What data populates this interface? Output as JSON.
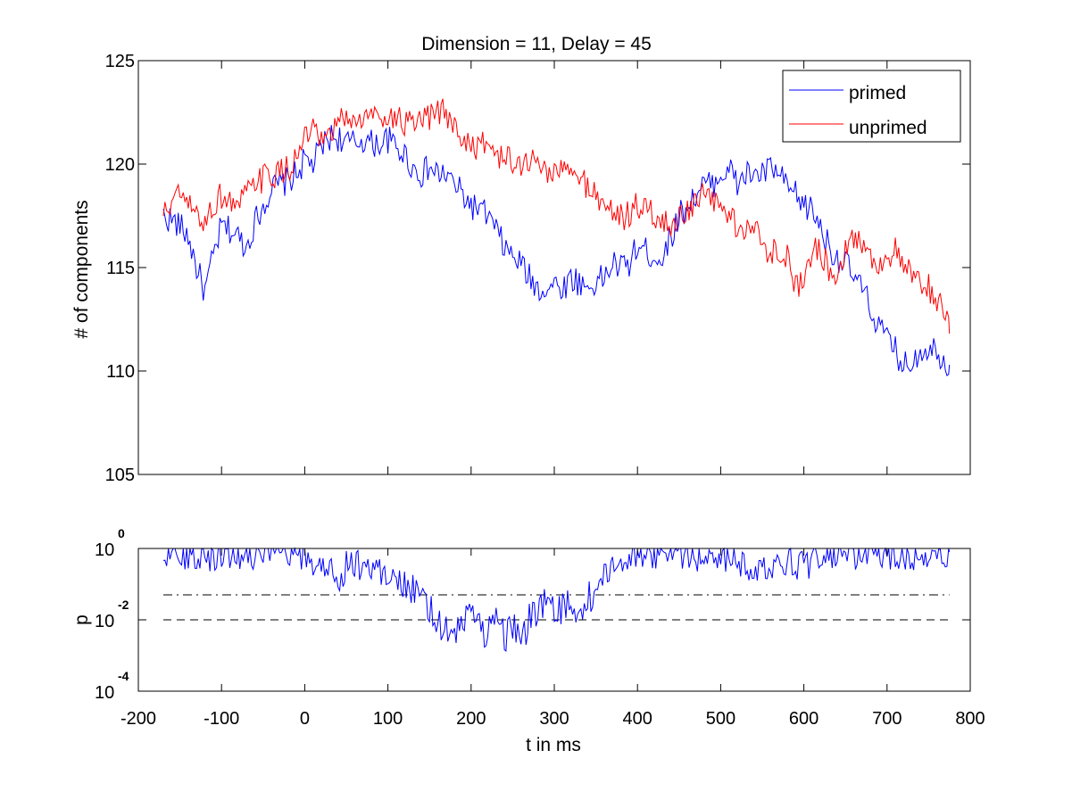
{
  "chart_data": [
    {
      "type": "line",
      "title": "Dimension  = 11, Delay = 45",
      "xlabel": "",
      "ylabel": "# of components",
      "xlim": [
        -200,
        800
      ],
      "ylim": [
        105,
        125
      ],
      "yticks": [
        105,
        110,
        115,
        120,
        125
      ],
      "xticks_shown": false,
      "grid": false,
      "legend_position": "top-right",
      "x_range_of_data": [
        -170,
        775
      ],
      "series": [
        {
          "name": "primed",
          "color": "#0000ff",
          "x": [
            -170,
            -160,
            -150,
            -140,
            -130,
            -120,
            -110,
            -100,
            -90,
            -80,
            -70,
            -60,
            -50,
            -40,
            -30,
            -20,
            -10,
            0,
            10,
            20,
            30,
            40,
            50,
            60,
            70,
            80,
            90,
            100,
            110,
            120,
            130,
            140,
            150,
            160,
            170,
            180,
            190,
            200,
            210,
            220,
            230,
            240,
            250,
            260,
            270,
            280,
            290,
            300,
            310,
            320,
            330,
            340,
            350,
            360,
            370,
            380,
            390,
            400,
            410,
            420,
            430,
            440,
            450,
            460,
            470,
            480,
            490,
            500,
            510,
            520,
            530,
            540,
            550,
            560,
            570,
            580,
            590,
            600,
            610,
            620,
            630,
            640,
            650,
            660,
            670,
            680,
            690,
            700,
            710,
            720,
            730,
            740,
            750,
            760,
            770,
            775
          ],
          "values": [
            117.5,
            117.3,
            117.0,
            116.5,
            115.0,
            113.8,
            115.5,
            117.0,
            116.8,
            116.5,
            116.0,
            117.2,
            118.0,
            118.8,
            119.0,
            119.2,
            119.5,
            120.2,
            120.0,
            120.8,
            121.3,
            121.3,
            121.0,
            121.0,
            121.2,
            121.0,
            121.0,
            121.2,
            120.8,
            120.5,
            119.8,
            119.5,
            119.8,
            119.5,
            119.5,
            119.0,
            118.5,
            118.0,
            117.8,
            117.5,
            116.8,
            116.0,
            115.5,
            115.2,
            114.5,
            114.0,
            114.0,
            114.2,
            114.0,
            114.5,
            114.3,
            114.0,
            114.3,
            114.5,
            115.2,
            115.0,
            115.2,
            116.0,
            115.8,
            115.5,
            115.5,
            116.5,
            117.5,
            118.0,
            118.5,
            119.0,
            119.0,
            119.5,
            119.8,
            119.0,
            119.5,
            119.5,
            119.5,
            119.8,
            119.5,
            118.8,
            118.5,
            118.0,
            117.8,
            117.0,
            116.0,
            115.5,
            115.2,
            114.5,
            114.0,
            113.0,
            112.2,
            111.5,
            111.0,
            110.2,
            110.5,
            111.0,
            111.2,
            111.0,
            110.5,
            110.3
          ]
        },
        {
          "name": "unprimed",
          "color": "#ff0000",
          "x": [
            -170,
            -160,
            -150,
            -140,
            -130,
            -120,
            -110,
            -100,
            -90,
            -80,
            -70,
            -60,
            -50,
            -40,
            -30,
            -20,
            -10,
            0,
            10,
            20,
            30,
            40,
            50,
            60,
            70,
            80,
            90,
            100,
            110,
            120,
            130,
            140,
            150,
            160,
            170,
            180,
            190,
            200,
            210,
            220,
            230,
            240,
            250,
            260,
            270,
            280,
            290,
            300,
            310,
            320,
            330,
            340,
            350,
            360,
            370,
            380,
            390,
            400,
            410,
            420,
            430,
            440,
            450,
            460,
            470,
            480,
            490,
            500,
            510,
            520,
            530,
            540,
            550,
            560,
            570,
            580,
            590,
            600,
            610,
            620,
            630,
            640,
            650,
            660,
            670,
            680,
            690,
            700,
            710,
            720,
            730,
            740,
            750,
            760,
            770,
            775
          ],
          "values": [
            117.5,
            118.2,
            118.5,
            118.0,
            117.5,
            117.2,
            118.0,
            118.5,
            118.2,
            118.0,
            118.5,
            119.0,
            119.3,
            119.5,
            119.5,
            119.8,
            120.2,
            121.3,
            121.5,
            121.0,
            121.2,
            122.0,
            122.3,
            122.0,
            122.2,
            122.3,
            122.5,
            122.3,
            122.2,
            122.0,
            121.8,
            122.0,
            122.2,
            122.5,
            122.5,
            121.8,
            121.2,
            121.0,
            120.8,
            121.0,
            120.5,
            120.3,
            120.0,
            120.0,
            120.2,
            120.0,
            119.8,
            119.5,
            119.8,
            119.5,
            119.3,
            119.0,
            118.5,
            118.0,
            117.8,
            117.5,
            117.5,
            118.0,
            117.8,
            117.5,
            117.2,
            117.0,
            117.5,
            117.8,
            118.0,
            118.5,
            118.2,
            118.0,
            117.5,
            117.0,
            116.8,
            117.0,
            116.0,
            115.8,
            116.0,
            115.5,
            114.0,
            114.5,
            116.0,
            115.8,
            115.0,
            114.8,
            116.0,
            116.5,
            116.2,
            115.5,
            115.2,
            115.5,
            115.8,
            115.0,
            114.5,
            114.2,
            114.0,
            113.5,
            112.5,
            111.8
          ]
        }
      ],
      "legend": {
        "entries": [
          {
            "label": "primed",
            "color": "#0000ff"
          },
          {
            "label": "unprimed",
            "color": "#ff0000"
          }
        ]
      }
    },
    {
      "type": "line",
      "title": "",
      "xlabel": "t in ms",
      "ylabel": "p",
      "xlim": [
        -200,
        800
      ],
      "xticks": [
        -200,
        -100,
        0,
        100,
        200,
        300,
        400,
        500,
        600,
        700,
        800
      ],
      "ylim": [
        0.0001,
        1
      ],
      "yscale": "log",
      "ytick_labels": [
        {
          "value": 1,
          "base": "10",
          "exp": "0"
        },
        {
          "value": 0.01,
          "base": "10",
          "exp": "-2"
        },
        {
          "value": 0.0001,
          "base": "10",
          "exp": "-4"
        }
      ],
      "grid": false,
      "reference_lines": [
        {
          "value": 0.05,
          "style": "dash-dot",
          "color": "#000000"
        },
        {
          "value": 0.01,
          "style": "dashed",
          "color": "#000000"
        }
      ],
      "series": [
        {
          "color": "#0000ff",
          "x": [
            -170,
            -150,
            -130,
            -110,
            -90,
            -70,
            -50,
            -30,
            -10,
            0,
            10,
            30,
            40,
            50,
            70,
            90,
            100,
            110,
            120,
            130,
            140,
            150,
            160,
            170,
            180,
            190,
            200,
            210,
            220,
            230,
            240,
            250,
            260,
            270,
            280,
            290,
            300,
            310,
            320,
            330,
            340,
            350,
            360,
            370,
            380,
            400,
            420,
            440,
            460,
            480,
            500,
            520,
            540,
            560,
            580,
            600,
            620,
            640,
            660,
            680,
            700,
            720,
            740,
            760,
            775
          ],
          "values": [
            0.8,
            0.7,
            0.75,
            0.6,
            0.8,
            0.7,
            0.75,
            0.6,
            0.7,
            0.5,
            0.4,
            0.3,
            0.1,
            0.4,
            0.35,
            0.25,
            0.2,
            0.15,
            0.1,
            0.07,
            0.03,
            0.02,
            0.01,
            0.005,
            0.003,
            0.008,
            0.03,
            0.006,
            0.004,
            0.02,
            0.003,
            0.008,
            0.002,
            0.01,
            0.02,
            0.03,
            0.015,
            0.02,
            0.03,
            0.01,
            0.04,
            0.06,
            0.15,
            0.3,
            0.5,
            0.7,
            0.75,
            0.8,
            0.7,
            0.6,
            0.65,
            0.5,
            0.15,
            0.4,
            0.5,
            0.3,
            0.75,
            0.7,
            0.6,
            0.7,
            0.75,
            0.6,
            0.75,
            0.7,
            0.8
          ]
        }
      ]
    }
  ]
}
